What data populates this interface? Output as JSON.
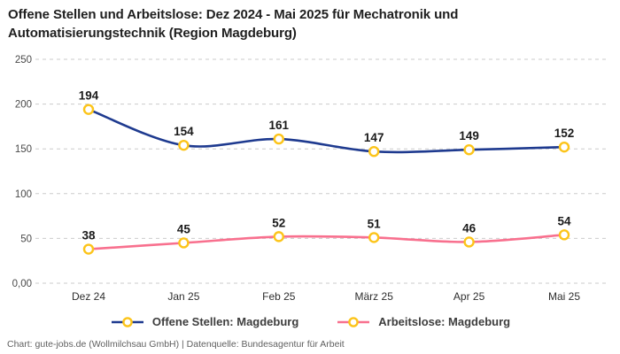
{
  "header": {
    "title_line1": "Offene Stellen und Arbeitslose: Dez 2024 - Mai 2025 für Mechatronik und",
    "title_line2": "Automatisierungstechnik (Region Magdeburg)"
  },
  "chart_data": {
    "type": "line",
    "title": "Offene Stellen und Arbeitslose: Dez 2024 - Mai 2025 für Mechatronik und Automatisierungstechnik (Region Magdeburg)",
    "categories": [
      "Dez 24",
      "Jan 25",
      "Feb 25",
      "März 25",
      "Apr 25",
      "Mai 25"
    ],
    "series": [
      {
        "name": "Offene Stellen: Magdeburg",
        "color": "#1e3a8f",
        "values": [
          194,
          154,
          161,
          147,
          149,
          152
        ]
      },
      {
        "name": "Arbeitslose: Magdeburg",
        "color": "#f8708e",
        "values": [
          38,
          45,
          52,
          51,
          46,
          54
        ]
      }
    ],
    "marker_color": "#fcc419",
    "marker_fill": "#ffffff",
    "ylim": [
      0,
      250
    ],
    "y_ticks": [
      {
        "value": 0,
        "label": "0,00"
      },
      {
        "value": 50,
        "label": "50"
      },
      {
        "value": 100,
        "label": "100"
      },
      {
        "value": 150,
        "label": "150"
      },
      {
        "value": 200,
        "label": "200"
      },
      {
        "value": 250,
        "label": "250"
      }
    ],
    "grid": "horizontal-dashed",
    "grid_color": "#cbcbcb",
    "data_labels": true,
    "legend_position": "bottom"
  },
  "footer": {
    "text": "Chart: gute-jobs.de (Wollmilchsau GmbH) | Datenquelle: Bundesagentur für Arbeit"
  }
}
